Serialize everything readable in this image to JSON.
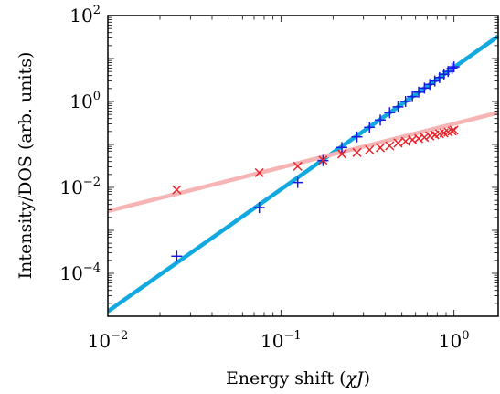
{
  "chart_data": {
    "type": "scatter",
    "xlabel_text": "Energy shift (",
    "xlabel_math": "χJ",
    "xlabel_end": ")",
    "ylabel": "Intensity/DOS (arb. units)",
    "xscale": "log",
    "yscale": "log",
    "xlim": [
      0.01,
      1.8
    ],
    "ylim": [
      1e-05,
      100
    ],
    "x_ticks": [
      {
        "value": 0.01,
        "base": "10",
        "exp": "−2"
      },
      {
        "value": 0.1,
        "base": "10",
        "exp": "−1"
      },
      {
        "value": 1,
        "base": "10",
        "exp": "0"
      }
    ],
    "y_ticks": [
      {
        "value": 0.0001,
        "base": "10",
        "exp": "−4"
      },
      {
        "value": 0.01,
        "base": "10",
        "exp": "−2"
      },
      {
        "value": 1,
        "base": "10",
        "exp": "0"
      },
      {
        "value": 100,
        "base": "10",
        "exp": "2"
      }
    ],
    "series": [
      {
        "marker": "plus",
        "color": "#1a1adf",
        "x": [
          0.025,
          0.075,
          0.125,
          0.175,
          0.225,
          0.275,
          0.325,
          0.375,
          0.425,
          0.475,
          0.525,
          0.575,
          0.625,
          0.675,
          0.725,
          0.775,
          0.825,
          0.875,
          0.925,
          0.975,
          1.0
        ],
        "y": [
          0.00025,
          0.0034,
          0.013,
          0.042,
          0.085,
          0.15,
          0.25,
          0.37,
          0.55,
          0.75,
          1.0,
          1.3,
          1.65,
          2.05,
          2.5,
          3.0,
          3.6,
          4.3,
          5.0,
          5.9,
          6.4
        ]
      },
      {
        "marker": "cross",
        "color": "#e8242b",
        "x": [
          0.025,
          0.075,
          0.125,
          0.175,
          0.225,
          0.275,
          0.325,
          0.375,
          0.425,
          0.475,
          0.525,
          0.575,
          0.625,
          0.675,
          0.725,
          0.775,
          0.825,
          0.875,
          0.925,
          0.975,
          1.0
        ],
        "y": [
          0.0088,
          0.022,
          0.031,
          0.043,
          0.06,
          0.065,
          0.075,
          0.084,
          0.093,
          0.108,
          0.118,
          0.128,
          0.137,
          0.146,
          0.158,
          0.167,
          0.178,
          0.185,
          0.195,
          0.205,
          0.215
        ]
      }
    ],
    "fit_lines": [
      {
        "color": "#12a9e0",
        "x": [
          0.01,
          1.8
        ],
        "y": [
          1.3e-05,
          33
        ]
      },
      {
        "color": "#f7b4b4",
        "x": [
          0.01,
          1.8
        ],
        "y": [
          0.0028,
          0.55
        ]
      }
    ],
    "grid": false,
    "legend": "none"
  }
}
